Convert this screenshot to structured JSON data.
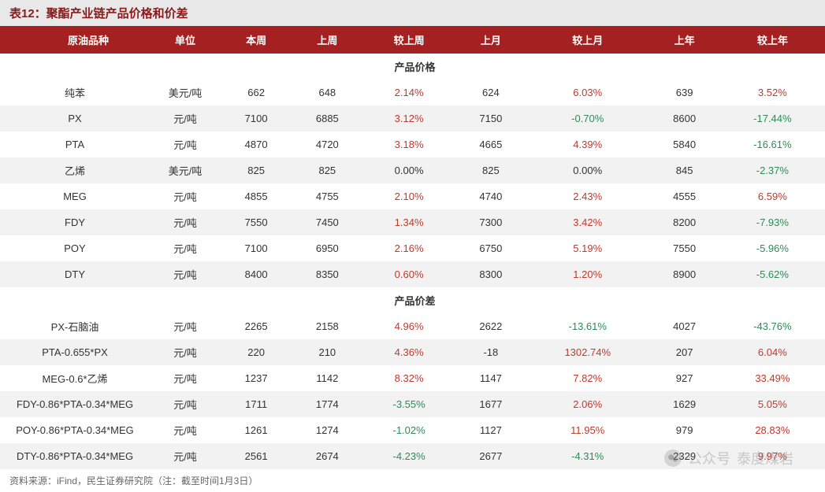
{
  "title": "表12：聚酯产业链产品价格和价差",
  "columns": [
    "原油品种",
    "单位",
    "本周",
    "上周",
    "较上周",
    "上月",
    "较上月",
    "上年",
    "较上年"
  ],
  "sections": [
    {
      "label": "产品价格",
      "rows": [
        {
          "name": "纯苯",
          "unit": "美元/吨",
          "week": "662",
          "lastWeek": "648",
          "vsLastWeek": "2.14%",
          "vsLastWeekSign": 1,
          "lastMonth": "624",
          "vsLastMonth": "6.03%",
          "vsLastMonthSign": 1,
          "lastYear": "639",
          "vsLastYear": "3.52%",
          "vsLastYearSign": 1
        },
        {
          "name": "PX",
          "unit": "元/吨",
          "week": "7100",
          "lastWeek": "6885",
          "vsLastWeek": "3.12%",
          "vsLastWeekSign": 1,
          "lastMonth": "7150",
          "vsLastMonth": "-0.70%",
          "vsLastMonthSign": -1,
          "lastYear": "8600",
          "vsLastYear": "-17.44%",
          "vsLastYearSign": -1
        },
        {
          "name": "PTA",
          "unit": "元/吨",
          "week": "4870",
          "lastWeek": "4720",
          "vsLastWeek": "3.18%",
          "vsLastWeekSign": 1,
          "lastMonth": "4665",
          "vsLastMonth": "4.39%",
          "vsLastMonthSign": 1,
          "lastYear": "5840",
          "vsLastYear": "-16.61%",
          "vsLastYearSign": -1
        },
        {
          "name": "乙烯",
          "unit": "美元/吨",
          "week": "825",
          "lastWeek": "825",
          "vsLastWeek": "0.00%",
          "vsLastWeekSign": 0,
          "lastMonth": "825",
          "vsLastMonth": "0.00%",
          "vsLastMonthSign": 0,
          "lastYear": "845",
          "vsLastYear": "-2.37%",
          "vsLastYearSign": -1
        },
        {
          "name": "MEG",
          "unit": "元/吨",
          "week": "4855",
          "lastWeek": "4755",
          "vsLastWeek": "2.10%",
          "vsLastWeekSign": 1,
          "lastMonth": "4740",
          "vsLastMonth": "2.43%",
          "vsLastMonthSign": 1,
          "lastYear": "4555",
          "vsLastYear": "6.59%",
          "vsLastYearSign": 1
        },
        {
          "name": "FDY",
          "unit": "元/吨",
          "week": "7550",
          "lastWeek": "7450",
          "vsLastWeek": "1.34%",
          "vsLastWeekSign": 1,
          "lastMonth": "7300",
          "vsLastMonth": "3.42%",
          "vsLastMonthSign": 1,
          "lastYear": "8200",
          "vsLastYear": "-7.93%",
          "vsLastYearSign": -1
        },
        {
          "name": "POY",
          "unit": "元/吨",
          "week": "7100",
          "lastWeek": "6950",
          "vsLastWeek": "2.16%",
          "vsLastWeekSign": 1,
          "lastMonth": "6750",
          "vsLastMonth": "5.19%",
          "vsLastMonthSign": 1,
          "lastYear": "7550",
          "vsLastYear": "-5.96%",
          "vsLastYearSign": -1
        },
        {
          "name": "DTY",
          "unit": "元/吨",
          "week": "8400",
          "lastWeek": "8350",
          "vsLastWeek": "0.60%",
          "vsLastWeekSign": 1,
          "lastMonth": "8300",
          "vsLastMonth": "1.20%",
          "vsLastMonthSign": 1,
          "lastYear": "8900",
          "vsLastYear": "-5.62%",
          "vsLastYearSign": -1
        }
      ]
    },
    {
      "label": "产品价差",
      "rows": [
        {
          "name": "PX-石脑油",
          "unit": "元/吨",
          "week": "2265",
          "lastWeek": "2158",
          "vsLastWeek": "4.96%",
          "vsLastWeekSign": 1,
          "lastMonth": "2622",
          "vsLastMonth": "-13.61%",
          "vsLastMonthSign": -1,
          "lastYear": "4027",
          "vsLastYear": "-43.76%",
          "vsLastYearSign": -1
        },
        {
          "name": "PTA-0.655*PX",
          "unit": "元/吨",
          "week": "220",
          "lastWeek": "210",
          "vsLastWeek": "4.36%",
          "vsLastWeekSign": 1,
          "lastMonth": "-18",
          "vsLastMonth": "1302.74%",
          "vsLastMonthSign": 1,
          "lastYear": "207",
          "vsLastYear": "6.04%",
          "vsLastYearSign": 1
        },
        {
          "name": "MEG-0.6*乙烯",
          "unit": "元/吨",
          "week": "1237",
          "lastWeek": "1142",
          "vsLastWeek": "8.32%",
          "vsLastWeekSign": 1,
          "lastMonth": "1147",
          "vsLastMonth": "7.82%",
          "vsLastMonthSign": 1,
          "lastYear": "927",
          "vsLastYear": "33.49%",
          "vsLastYearSign": 1
        },
        {
          "name": "FDY-0.86*PTA-0.34*MEG",
          "unit": "元/吨",
          "week": "1711",
          "lastWeek": "1774",
          "vsLastWeek": "-3.55%",
          "vsLastWeekSign": -1,
          "lastMonth": "1677",
          "vsLastMonth": "2.06%",
          "vsLastMonthSign": 1,
          "lastYear": "1629",
          "vsLastYear": "5.05%",
          "vsLastYearSign": 1
        },
        {
          "name": "POY-0.86*PTA-0.34*MEG",
          "unit": "元/吨",
          "week": "1261",
          "lastWeek": "1274",
          "vsLastWeek": "-1.02%",
          "vsLastWeekSign": -1,
          "lastMonth": "1127",
          "vsLastMonth": "11.95%",
          "vsLastMonthSign": 1,
          "lastYear": "979",
          "vsLastYear": "28.83%",
          "vsLastYearSign": 1
        },
        {
          "name": "DTY-0.86*PTA-0.34*MEG",
          "unit": "元/吨",
          "week": "2561",
          "lastWeek": "2674",
          "vsLastWeek": "-4.23%",
          "vsLastWeekSign": -1,
          "lastMonth": "2677",
          "vsLastMonth": "-4.31%",
          "vsLastMonthSign": -1,
          "lastYear": "2329",
          "vsLastYear": "9.97%",
          "vsLastYearSign": 1
        }
      ]
    }
  ],
  "footnote": "资料来源：iFind，民生证券研究院（注：截至时间1月3日）",
  "watermark": {
    "label1": "公众号",
    "label2": "泰度煤岩"
  },
  "colors": {
    "headerBg": "#a52020",
    "titleText": "#8b1a1a",
    "altRow": "#f2f2f2",
    "positive": "#c0392b",
    "negative": "#2e8b57"
  }
}
